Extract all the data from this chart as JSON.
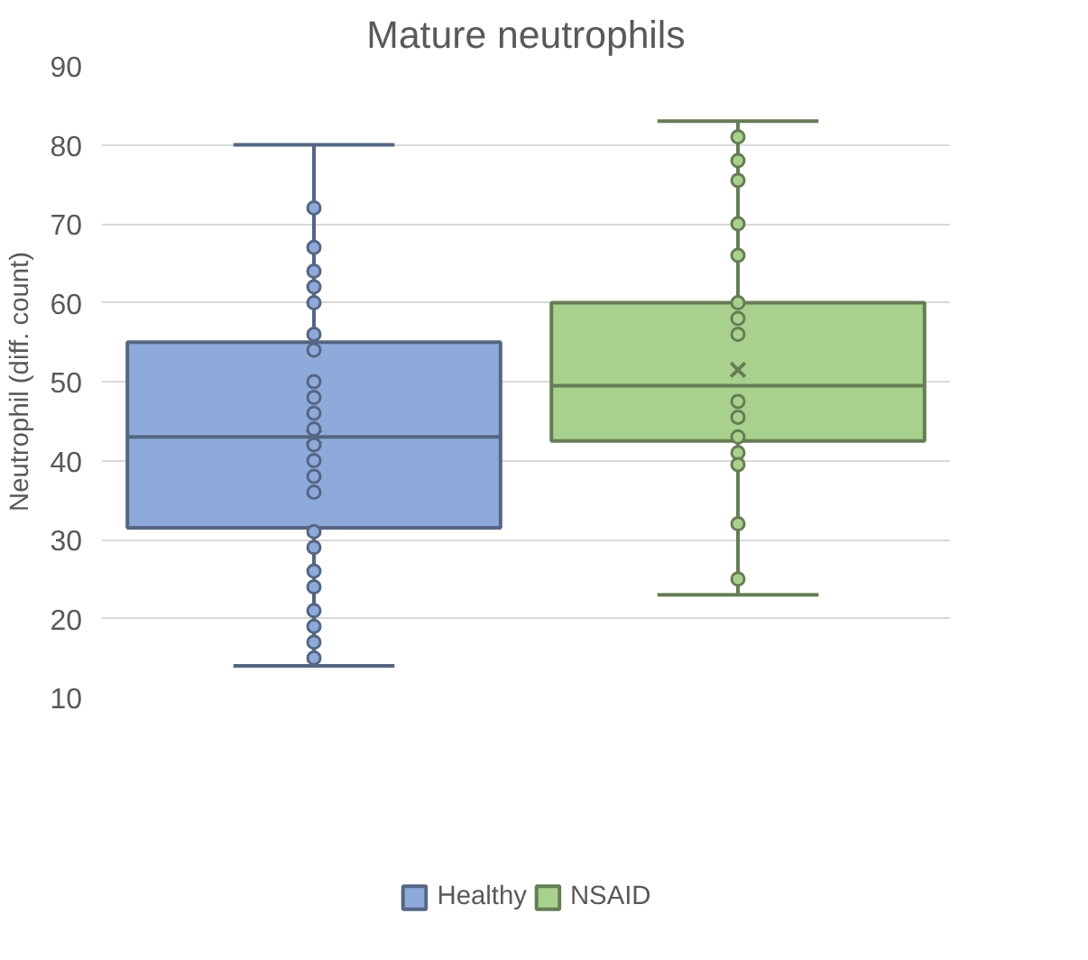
{
  "chart_data": {
    "type": "box",
    "title": "Mature neutrophils",
    "ylabel": "Neutrophil (diff. count)",
    "categories": [
      null
    ],
    "ylim": [
      10,
      90
    ],
    "yticks": [
      10,
      20,
      30,
      40,
      50,
      60,
      70,
      80,
      90
    ],
    "grid": "y",
    "legend": "bottom",
    "series": [
      {
        "name": "Healthy",
        "color": "#8eaadb",
        "boxes": [
          {
            "low": 14,
            "q1": 31.5,
            "median": 43,
            "q3": 55,
            "high": 80,
            "mean": 43
          }
        ]
      },
      {
        "name": "NSAID",
        "color": "#a9d18e",
        "boxes": [
          {
            "low": 23,
            "q1": 42.5,
            "median": 49.5,
            "q3": 60,
            "high": 83,
            "mean": 51.5
          }
        ]
      },
      {
        "type": "scatter",
        "color": "#8eaadb",
        "x": [
          null,
          null,
          null,
          null,
          null,
          null,
          null,
          null,
          null,
          null,
          null,
          null,
          null,
          null,
          null,
          null,
          null,
          null,
          null,
          null,
          null,
          null,
          null
        ],
        "values": [
          72,
          67,
          64,
          62,
          60,
          56,
          54,
          50,
          48,
          46,
          44,
          42,
          40,
          38,
          36,
          31,
          29,
          26,
          24,
          21,
          19,
          17,
          15
        ]
      },
      {
        "type": "scatter",
        "color": "#a9d18e",
        "x": [
          null,
          null,
          null,
          null,
          null,
          null,
          null,
          null,
          null,
          null,
          null,
          null,
          null,
          null,
          null
        ],
        "values": [
          81,
          78,
          75.5,
          70,
          66,
          60,
          58,
          56,
          47.5,
          45.5,
          43,
          41,
          39.5,
          32,
          25
        ]
      }
    ]
  }
}
